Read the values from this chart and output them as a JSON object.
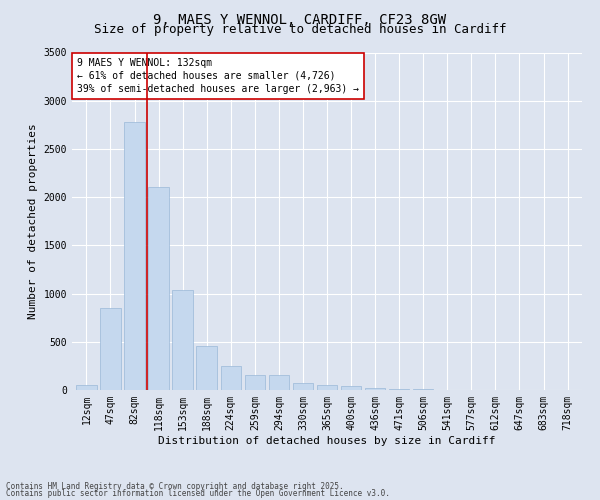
{
  "title_line1": "9, MAES Y WENNOL, CARDIFF, CF23 8GW",
  "title_line2": "Size of property relative to detached houses in Cardiff",
  "xlabel": "Distribution of detached houses by size in Cardiff",
  "ylabel": "Number of detached properties",
  "categories": [
    "12sqm",
    "47sqm",
    "82sqm",
    "118sqm",
    "153sqm",
    "188sqm",
    "224sqm",
    "259sqm",
    "294sqm",
    "330sqm",
    "365sqm",
    "400sqm",
    "436sqm",
    "471sqm",
    "506sqm",
    "541sqm",
    "577sqm",
    "612sqm",
    "647sqm",
    "683sqm",
    "718sqm"
  ],
  "values": [
    55,
    850,
    2780,
    2110,
    1040,
    460,
    250,
    155,
    155,
    70,
    55,
    45,
    20,
    15,
    10,
    5,
    5,
    3,
    2,
    2,
    1
  ],
  "bar_color": "#c5d8ee",
  "bar_edge_color": "#9ab8d8",
  "vline_x_index": 2,
  "vline_color": "#cc0000",
  "annotation_text": "9 MAES Y WENNOL: 132sqm\n← 61% of detached houses are smaller (4,726)\n39% of semi-detached houses are larger (2,963) →",
  "annotation_box_color": "#ffffff",
  "annotation_box_edge": "#cc0000",
  "ylim": [
    0,
    3500
  ],
  "yticks": [
    0,
    500,
    1000,
    1500,
    2000,
    2500,
    3000,
    3500
  ],
  "background_color": "#dde4f0",
  "plot_bg_color": "#dde4f0",
  "footnote_line1": "Contains HM Land Registry data © Crown copyright and database right 2025.",
  "footnote_line2": "Contains public sector information licensed under the Open Government Licence v3.0.",
  "grid_color": "#ffffff",
  "title_fontsize": 10,
  "subtitle_fontsize": 9,
  "tick_fontsize": 7,
  "ylabel_fontsize": 8,
  "xlabel_fontsize": 8,
  "annot_fontsize": 7
}
